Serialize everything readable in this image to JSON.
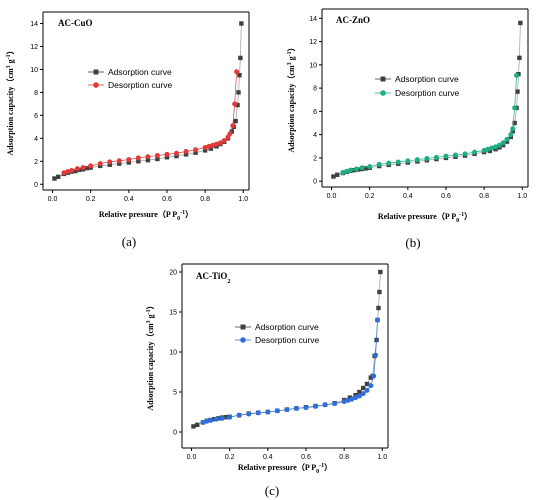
{
  "chart_data": [
    {
      "type": "scatter",
      "panel_label": "(a)",
      "title_main": "AC-CuO",
      "title_sub": "",
      "xlabel_main": "Relative pressure（P P",
      "xlabel_sub": "0",
      "xlabel_sup": "-1",
      "xlabel_end": "）",
      "ylabel_main": "Adsorption capacity（cm",
      "ylabel_sup1": "3",
      "ylabel_mid": " g",
      "ylabel_sup2": "-1",
      "ylabel_end": "）",
      "xlim": [
        -0.05,
        1.03
      ],
      "ylim": [
        -0.5,
        15
      ],
      "xticks": [
        0.0,
        0.2,
        0.4,
        0.6,
        0.8,
        1.0
      ],
      "xtick_labels": [
        "0.0",
        "0.2",
        "0.4",
        "0.6",
        "0.8",
        "1.0"
      ],
      "yticks": [
        0,
        2,
        4,
        6,
        8,
        10,
        12,
        14
      ],
      "ytick_labels": [
        "0",
        "2",
        "4",
        "6",
        "8",
        "10",
        "12",
        "14"
      ],
      "legend_position": "upper-left",
      "series": [
        {
          "name": "Adsorption curve",
          "color": "#404040",
          "marker": "square",
          "x": [
            0.01,
            0.03,
            0.06,
            0.08,
            0.1,
            0.12,
            0.14,
            0.16,
            0.18,
            0.2,
            0.25,
            0.3,
            0.35,
            0.4,
            0.45,
            0.5,
            0.55,
            0.6,
            0.65,
            0.7,
            0.75,
            0.8,
            0.83,
            0.86,
            0.88,
            0.9,
            0.92,
            0.94,
            0.95,
            0.96,
            0.97,
            0.975,
            0.98,
            0.985,
            0.99
          ],
          "y": [
            0.5,
            0.65,
            0.9,
            1.0,
            1.1,
            1.15,
            1.25,
            1.3,
            1.4,
            1.45,
            1.6,
            1.7,
            1.8,
            1.9,
            2.0,
            2.1,
            2.2,
            2.35,
            2.45,
            2.6,
            2.75,
            2.95,
            3.1,
            3.3,
            3.5,
            3.7,
            4.0,
            4.6,
            5.0,
            5.5,
            6.9,
            8.0,
            9.5,
            11.0,
            14.0
          ]
        },
        {
          "name": "Desorption curve",
          "color": "#e23a3a",
          "marker": "circle",
          "x": [
            0.965,
            0.955,
            0.945,
            0.93,
            0.92,
            0.9,
            0.88,
            0.86,
            0.84,
            0.82,
            0.8,
            0.75,
            0.7,
            0.65,
            0.6,
            0.55,
            0.5,
            0.45,
            0.4,
            0.35,
            0.3,
            0.25,
            0.2,
            0.16,
            0.13,
            0.1,
            0.08,
            0.06
          ],
          "y": [
            9.8,
            7.0,
            5.1,
            4.4,
            4.1,
            3.8,
            3.6,
            3.5,
            3.4,
            3.3,
            3.2,
            3.0,
            2.85,
            2.7,
            2.6,
            2.5,
            2.4,
            2.3,
            2.15,
            2.05,
            1.95,
            1.8,
            1.6,
            1.45,
            1.35,
            1.2,
            1.1,
            1.0
          ]
        }
      ]
    },
    {
      "type": "scatter",
      "panel_label": "(b)",
      "title_main": "AC-ZnO",
      "title_sub": "",
      "xlabel_main": "Relative pressure（P P",
      "xlabel_sub": "0",
      "xlabel_sup": "-1",
      "xlabel_end": "）",
      "ylabel_main": "Adsorption capacity（cm",
      "ylabel_sup1": "3",
      "ylabel_mid": " g",
      "ylabel_sup2": "-1",
      "ylabel_end": "）",
      "xlim": [
        -0.05,
        1.03
      ],
      "ylim": [
        -0.5,
        14.8
      ],
      "xticks": [
        0.0,
        0.2,
        0.4,
        0.6,
        0.8,
        1.0
      ],
      "xtick_labels": [
        "0.0",
        "0.2",
        "0.4",
        "0.6",
        "0.8",
        "1.0"
      ],
      "yticks": [
        0,
        2,
        4,
        6,
        8,
        10,
        12,
        14
      ],
      "ytick_labels": [
        "0",
        "2",
        "4",
        "6",
        "8",
        "10",
        "12",
        "14"
      ],
      "legend_position": "upper-left",
      "series": [
        {
          "name": "Adsorption curve",
          "color": "#404040",
          "marker": "square",
          "x": [
            0.01,
            0.03,
            0.06,
            0.08,
            0.1,
            0.12,
            0.14,
            0.16,
            0.18,
            0.2,
            0.25,
            0.3,
            0.35,
            0.4,
            0.45,
            0.5,
            0.55,
            0.6,
            0.65,
            0.7,
            0.75,
            0.8,
            0.83,
            0.86,
            0.88,
            0.9,
            0.92,
            0.94,
            0.95,
            0.96,
            0.97,
            0.975,
            0.98,
            0.985,
            0.99
          ],
          "y": [
            0.4,
            0.55,
            0.7,
            0.8,
            0.9,
            0.95,
            1.0,
            1.05,
            1.1,
            1.15,
            1.3,
            1.4,
            1.5,
            1.6,
            1.7,
            1.8,
            1.9,
            2.0,
            2.1,
            2.2,
            2.35,
            2.5,
            2.6,
            2.75,
            2.9,
            3.1,
            3.4,
            3.8,
            4.3,
            5.0,
            6.3,
            7.7,
            9.2,
            10.6,
            13.6
          ]
        },
        {
          "name": "Desorption curve",
          "color": "#1fae84",
          "marker": "circle",
          "x": [
            0.97,
            0.96,
            0.95,
            0.94,
            0.92,
            0.9,
            0.88,
            0.86,
            0.84,
            0.82,
            0.8,
            0.75,
            0.7,
            0.65,
            0.6,
            0.55,
            0.5,
            0.45,
            0.4,
            0.35,
            0.3,
            0.25,
            0.2,
            0.16,
            0.13,
            0.1,
            0.08,
            0.06
          ],
          "y": [
            9.1,
            6.3,
            4.5,
            4.0,
            3.6,
            3.3,
            3.1,
            2.95,
            2.85,
            2.75,
            2.65,
            2.5,
            2.35,
            2.25,
            2.15,
            2.05,
            1.95,
            1.85,
            1.75,
            1.65,
            1.55,
            1.45,
            1.25,
            1.15,
            1.05,
            0.95,
            0.85,
            0.75
          ]
        }
      ]
    },
    {
      "type": "scatter",
      "panel_label": "(c)",
      "title_main": "AC-TiO",
      "title_sub": "2",
      "xlabel_main": "Relative pressure（P P",
      "xlabel_sub": "0",
      "xlabel_sup": "-1",
      "xlabel_end": "）",
      "ylabel_main": "Adsorption capacity（cm",
      "ylabel_sup1": "3",
      "ylabel_mid": " g",
      "ylabel_sup2": "-1",
      "ylabel_end": "）",
      "xlim": [
        -0.05,
        1.03
      ],
      "ylim": [
        -2,
        21
      ],
      "xticks": [
        0.0,
        0.2,
        0.4,
        0.6,
        0.8,
        1.0
      ],
      "xtick_labels": [
        "0.0",
        "0.2",
        "0.4",
        "0.6",
        "0.8",
        "1.0"
      ],
      "yticks": [
        0,
        5,
        10,
        15,
        20
      ],
      "ytick_labels": [
        "0",
        "5",
        "10",
        "15",
        "20"
      ],
      "legend_position": "upper-left",
      "series": [
        {
          "name": "Adsorption curve",
          "color": "#404040",
          "marker": "square",
          "x": [
            0.01,
            0.03,
            0.06,
            0.08,
            0.1,
            0.12,
            0.14,
            0.16,
            0.18,
            0.2,
            0.25,
            0.3,
            0.35,
            0.4,
            0.45,
            0.5,
            0.55,
            0.6,
            0.65,
            0.7,
            0.75,
            0.8,
            0.83,
            0.86,
            0.88,
            0.9,
            0.92,
            0.94,
            0.95,
            0.96,
            0.97,
            0.975,
            0.98,
            0.985,
            0.99
          ],
          "y": [
            0.7,
            0.9,
            1.2,
            1.4,
            1.5,
            1.6,
            1.7,
            1.8,
            1.85,
            1.9,
            2.1,
            2.3,
            2.4,
            2.5,
            2.65,
            2.8,
            2.95,
            3.1,
            3.25,
            3.4,
            3.6,
            4.0,
            4.3,
            4.6,
            5.0,
            5.5,
            6.0,
            6.8,
            7.0,
            9.5,
            11.5,
            14.0,
            15.5,
            17.5,
            20.0
          ]
        },
        {
          "name": "Desorption curve",
          "color": "#2f6fd8",
          "marker": "circle",
          "x": [
            0.975,
            0.965,
            0.955,
            0.94,
            0.92,
            0.9,
            0.88,
            0.86,
            0.84,
            0.82,
            0.8,
            0.75,
            0.7,
            0.65,
            0.6,
            0.55,
            0.5,
            0.45,
            0.4,
            0.35,
            0.3,
            0.25,
            0.2,
            0.16,
            0.13,
            0.1,
            0.08,
            0.06
          ],
          "y": [
            14.0,
            9.6,
            7.0,
            5.8,
            5.2,
            4.8,
            4.5,
            4.3,
            4.1,
            3.95,
            3.8,
            3.55,
            3.4,
            3.2,
            3.05,
            2.95,
            2.8,
            2.65,
            2.5,
            2.4,
            2.25,
            2.1,
            1.85,
            1.7,
            1.6,
            1.45,
            1.35,
            1.2
          ]
        }
      ]
    }
  ]
}
